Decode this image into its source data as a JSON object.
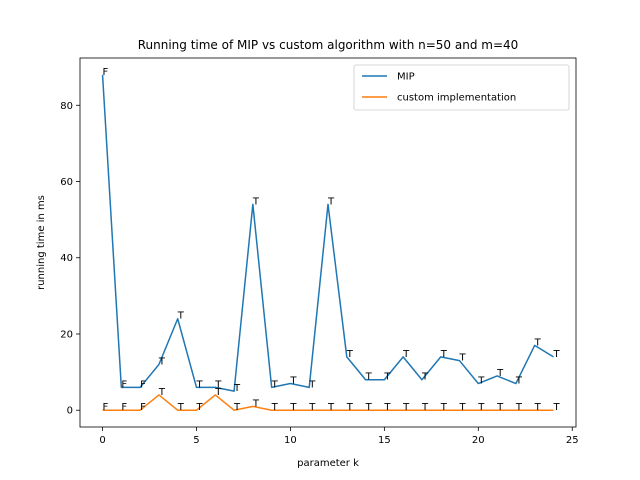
{
  "chart_data": {
    "type": "line",
    "title": "Running time of MIP vs custom algorithm with n=50 and m=40",
    "xlabel": "parameter k",
    "ylabel": "running time in ms",
    "xlim": [
      -1.2,
      25.2
    ],
    "ylim": [
      -4.4,
      92.4
    ],
    "xticks": [
      0,
      5,
      10,
      15,
      20,
      25
    ],
    "yticks": [
      0,
      20,
      40,
      60,
      80
    ],
    "grid": false,
    "legend_position": "top-right",
    "x": [
      0,
      1,
      2,
      3,
      4,
      5,
      6,
      7,
      8,
      9,
      10,
      11,
      12,
      13,
      14,
      15,
      16,
      17,
      18,
      19,
      20,
      21,
      22,
      23,
      24
    ],
    "series": [
      {
        "name": "MIP",
        "color": "#1f77b4",
        "values": [
          88,
          6,
          6,
          12,
          24,
          6,
          6,
          5,
          54,
          6,
          7,
          6,
          54,
          14,
          8,
          8,
          14,
          8,
          14,
          13,
          7,
          9,
          7,
          17,
          14
        ],
        "labels": [
          "F",
          "F",
          "F",
          "T",
          "T",
          "T",
          "T",
          "T",
          "T",
          "T",
          "T",
          "T",
          "T",
          "T",
          "T",
          "T",
          "T",
          "T",
          "T",
          "T",
          "T",
          "T",
          "T",
          "T",
          "T"
        ]
      },
      {
        "name": "custom implementation",
        "color": "#ff7f0e",
        "values": [
          0,
          0,
          0,
          4,
          0,
          0,
          4,
          0,
          1,
          0,
          0,
          0,
          0,
          0,
          0,
          0,
          0,
          0,
          0,
          0,
          0,
          0,
          0,
          0,
          0
        ],
        "labels": [
          "F",
          "F",
          "F",
          "T",
          "T",
          "T",
          "T",
          "T",
          "T",
          "T",
          "T",
          "T",
          "T",
          "T",
          "T",
          "T",
          "T",
          "T",
          "T",
          "T",
          "T",
          "T",
          "T",
          "T",
          "T"
        ]
      }
    ]
  }
}
